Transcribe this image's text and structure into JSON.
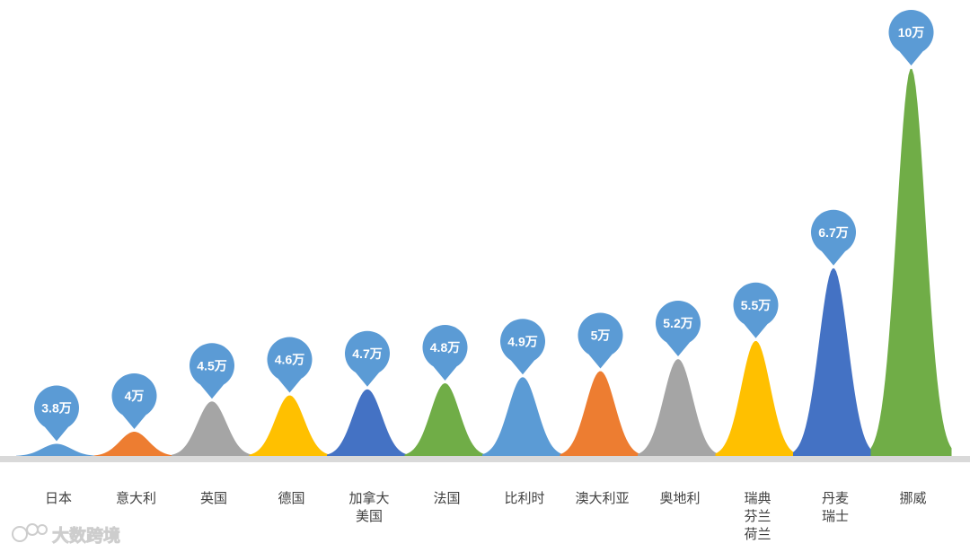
{
  "chart_data": {
    "type": "area",
    "categories": [
      [
        "日本"
      ],
      [
        "意大利"
      ],
      [
        "英国"
      ],
      [
        "德国"
      ],
      [
        "加拿大",
        "美国"
      ],
      [
        "法国"
      ],
      [
        "比利时"
      ],
      [
        "澳大利亚"
      ],
      [
        "奥地利"
      ],
      [
        "瑞典",
        "芬兰",
        "荷兰"
      ],
      [
        "丹麦",
        "瑞士"
      ],
      [
        "挪威"
      ]
    ],
    "values": [
      3.8,
      4,
      4.5,
      4.6,
      4.7,
      4.8,
      4.9,
      5,
      5.2,
      5.5,
      6.7,
      10
    ],
    "data_labels": [
      "3.8万",
      "4万",
      "4.5万",
      "4.6万",
      "4.7万",
      "4.8万",
      "4.9万",
      "5万",
      "5.2万",
      "5.5万",
      "6.7万",
      "10万"
    ],
    "colors": [
      "#5B9BD5",
      "#ED7D31",
      "#A5A5A5",
      "#FFC000",
      "#4472C4",
      "#70AD47",
      "#5B9BD5",
      "#ED7D31",
      "#A5A5A5",
      "#FFC000",
      "#4472C4",
      "#70AD47"
    ],
    "label_color": "#5B9BD5",
    "baseline_color": "#D9D9D9",
    "legend": "none",
    "grid": false
  },
  "watermark": {
    "logo_text": "ICO",
    "text": "大数跨境"
  }
}
